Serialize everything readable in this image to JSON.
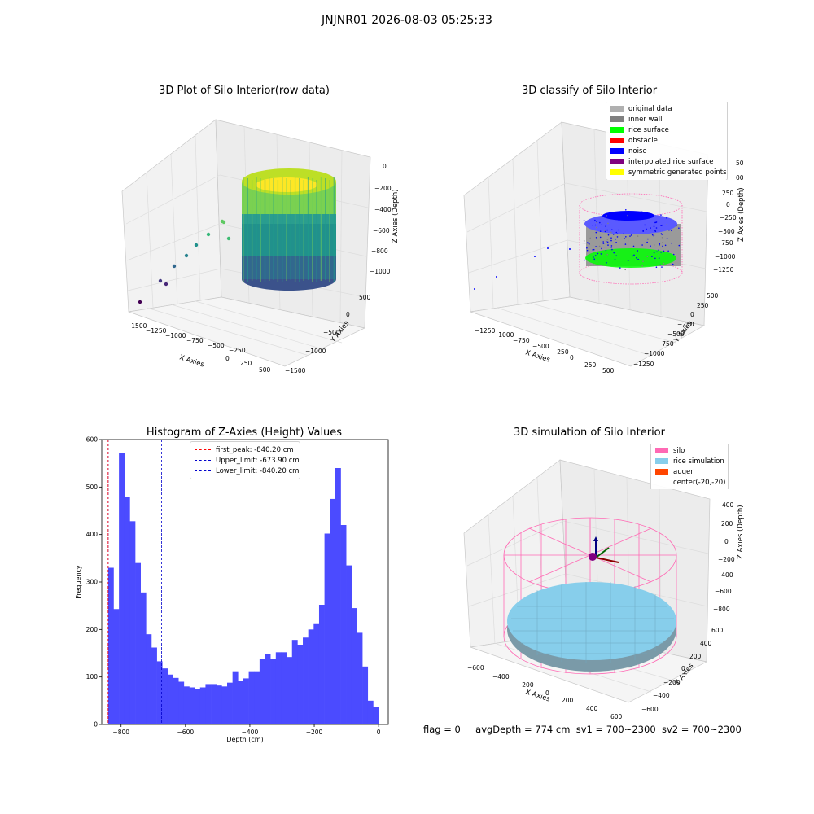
{
  "figure": {
    "suptitle": "JNJNR01 2026-08-03 05:25:33",
    "status_line": {
      "flag": "flag = 0",
      "avg_depth": "avgDepth = 774 cm",
      "sv1": "sv1 = 700~2300",
      "sv2": "sv2 = 700~2300"
    }
  },
  "colors": {
    "hist_bar": "#4b4bff",
    "upper_line": "#0000cc",
    "first_peak_line": "#ff0000",
    "silo": "#ff69b4",
    "rice": "#87ceeb",
    "auger": "#ff4500",
    "noise": "#0000ff",
    "rice_surface": "#00ff00",
    "inner_wall": "#808080"
  },
  "plot1": {
    "title": "3D Plot of Silo Interior(row data)",
    "xlabel": "X Axies",
    "ylabel": "Y Axies",
    "zlabel": "Z Axies (Depth)",
    "xticks": [
      "−1500",
      "−1250",
      "−1000",
      "−750",
      "−500",
      "−250",
      "0",
      "250",
      "500"
    ],
    "yticks": [
      "500",
      "0",
      "−500",
      "−1000",
      "−1500"
    ],
    "zticks": [
      "0",
      "−200",
      "−400",
      "−600",
      "−800",
      "−1000"
    ]
  },
  "plot2": {
    "title": "3D classify of Silo Interior",
    "xlabel": "X Axies",
    "ylabel": "Y Axies",
    "zlabel": "Z Axies (Depth)",
    "xticks": [
      "−1250",
      "−1000",
      "−750",
      "−500",
      "−250",
      "0",
      "250",
      "500"
    ],
    "yticks": [
      "500",
      "250",
      "0",
      "−250",
      "−500",
      "−750",
      "−1000",
      "−1250"
    ],
    "zticks": [
      "250",
      "0",
      "−250",
      "−500",
      "−750",
      "−1000",
      "−1250"
    ],
    "ztick_partial": [
      "50",
      "00"
    ],
    "legend": [
      {
        "label": "original data",
        "color": "#b0b0b0"
      },
      {
        "label": "inner wall",
        "color": "#808080"
      },
      {
        "label": "rice surface",
        "color": "#00ff00"
      },
      {
        "label": "obstacle",
        "color": "#ff0000"
      },
      {
        "label": "noise",
        "color": "#0000ff"
      },
      {
        "label": "interpolated rice surface",
        "color": "#800080"
      },
      {
        "label": "symmetric generated points",
        "color": "#ffff00"
      }
    ]
  },
  "plot4": {
    "title": "3D simulation of Silo Interior",
    "xlabel": "X Axies",
    "ylabel": "Y Axies",
    "zlabel": "Z Axies (Depth)",
    "xticks": [
      "−600",
      "−400",
      "−200",
      "0",
      "200",
      "400",
      "600"
    ],
    "yticks": [
      "600",
      "400",
      "200",
      "0",
      "−200",
      "−400",
      "−600"
    ],
    "zticks": [
      "400",
      "200",
      "0",
      "−200",
      "−400",
      "−600",
      "−800"
    ],
    "legend": [
      {
        "label": "silo",
        "color": "#ff69b4"
      },
      {
        "label": "rice simulation",
        "color": "#87ceeb"
      },
      {
        "label": "auger",
        "color": "#ff4500"
      },
      {
        "label": "center(-20,-20)",
        "color": ""
      }
    ]
  },
  "chart_data": {
    "type": "bar",
    "title": "Histogram of Z-Axies (Height) Values",
    "xlabel": "Depth (cm)",
    "ylabel": "Frequency",
    "xlim": [
      -860,
      30
    ],
    "ylim": [
      0,
      600
    ],
    "xticks": [
      -800,
      -600,
      -400,
      -200,
      0
    ],
    "yticks": [
      0,
      100,
      200,
      300,
      400,
      500,
      600
    ],
    "xtick_labels": [
      "−800",
      "−600",
      "−400",
      "−200",
      "0"
    ],
    "ytick_labels": [
      "0",
      "100",
      "200",
      "300",
      "400",
      "500",
      "600"
    ],
    "bin_start": -840.2,
    "bin_width": 16.8,
    "values": [
      330,
      243,
      572,
      480,
      428,
      340,
      278,
      190,
      162,
      133,
      118,
      105,
      98,
      90,
      80,
      78,
      75,
      78,
      85,
      85,
      82,
      80,
      88,
      112,
      92,
      97,
      112,
      112,
      138,
      148,
      138,
      152,
      152,
      142,
      178,
      168,
      183,
      200,
      213,
      252,
      402,
      475,
      540,
      420,
      335,
      245,
      193,
      122,
      50,
      36
    ],
    "grid": false,
    "legend_position": "top-center",
    "lines": [
      {
        "name": "first_peak: -840.20 cm",
        "x": -840.2,
        "style": "dashed",
        "color": "#ff0000"
      },
      {
        "name": "Upper_limit: -673.90 cm",
        "x": -673.9,
        "style": "dashed",
        "color": "#0000cc"
      },
      {
        "name": "Lower_limit: -840.20 cm",
        "x": -840.2,
        "style": "dashed",
        "color": "#0000cc"
      }
    ]
  }
}
